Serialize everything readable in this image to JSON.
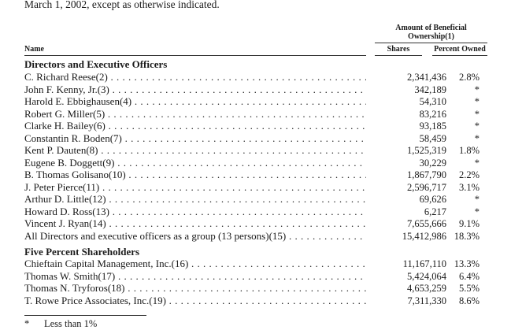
{
  "intro_text": "March 1, 2002, except as otherwise indicated.",
  "header": {
    "group_label": "Amount of Beneficial Ownership(1)",
    "name_label": "Name",
    "shares_label": "Shares",
    "percent_label": "Percent Owned"
  },
  "sections": [
    {
      "title": "Directors and Executive Officers",
      "rows": [
        {
          "name": "C. Richard Reese(2)",
          "shares": "2,341,436",
          "percent": "2.8%"
        },
        {
          "name": "John F. Kenny, Jr.(3)",
          "shares": "342,189",
          "percent": "*"
        },
        {
          "name": "Harold E. Ebbighausen(4)",
          "shares": "54,310",
          "percent": "*"
        },
        {
          "name": "Robert G. Miller(5)",
          "shares": "83,216",
          "percent": "*"
        },
        {
          "name": "Clarke H. Bailey(6)",
          "shares": "93,185",
          "percent": "*"
        },
        {
          "name": "Constantin R. Boden(7)",
          "shares": "58,459",
          "percent": "*"
        },
        {
          "name": "Kent P. Dauten(8)",
          "shares": "1,525,319",
          "percent": "1.8%"
        },
        {
          "name": "Eugene B. Doggett(9)",
          "shares": "30,229",
          "percent": "*"
        },
        {
          "name": "B. Thomas Golisano(10)",
          "shares": "1,867,790",
          "percent": "2.2%"
        },
        {
          "name": "J. Peter Pierce(11)",
          "shares": "2,596,717",
          "percent": "3.1%"
        },
        {
          "name": "Arthur D. Little(12)",
          "shares": "69,626",
          "percent": "*"
        },
        {
          "name": "Howard D. Ross(13)",
          "shares": "6,217",
          "percent": "*"
        },
        {
          "name": "Vincent J. Ryan(14)",
          "shares": "7,655,666",
          "percent": "9.1%"
        },
        {
          "name": "All Directors and executive officers as a group (13 persons)(15)",
          "shares": "15,412,986",
          "percent": "18.3%"
        }
      ]
    },
    {
      "title": "Five Percent Shareholders",
      "rows": [
        {
          "name": "Chieftain Capital Management, Inc.(16)",
          "shares": "11,167,110",
          "percent": "13.3%"
        },
        {
          "name": "Thomas W. Smith(17)",
          "shares": "5,424,064",
          "percent": "6.4%"
        },
        {
          "name": "Thomas N. Tryforos(18)",
          "shares": "4,653,259",
          "percent": "5.5%"
        },
        {
          "name": "T. Rowe Price Associates, Inc.(19)",
          "shares": "7,311,330",
          "percent": "8.6%"
        }
      ]
    }
  ],
  "footnote": {
    "mark": "*",
    "text": "Less than 1%"
  }
}
